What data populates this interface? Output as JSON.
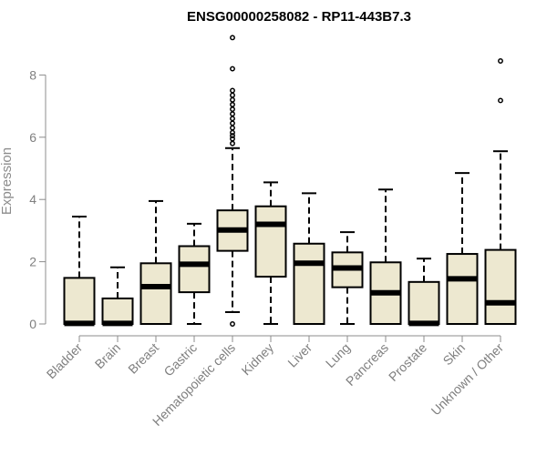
{
  "chart_data": {
    "type": "box",
    "title": "ENSG00000258082 - RP11-443B7.3",
    "ylabel": "Expression",
    "xlabel": "",
    "ylim": [
      0,
      9.25
    ],
    "yticks": [
      0,
      2,
      4,
      6,
      8
    ],
    "ytick_labels": [
      "0",
      "2",
      "4",
      "6",
      "8"
    ],
    "grid": false,
    "legend": "none",
    "colors": {
      "box_fill": "#ede8d0",
      "stroke": "#000000",
      "axis": "#8c8c8c"
    },
    "categories": [
      "Bladder",
      "Brain",
      "Breast",
      "Gastric",
      "Hematopoietic cells",
      "Kidney",
      "Liver",
      "Lung",
      "Pancreas",
      "Prostate",
      "Skin",
      "Unknown / Other"
    ],
    "boxes": [
      {
        "whisker_low": 0,
        "q1": 0,
        "median": 0.02,
        "q3": 1.48,
        "whisker_high": 3.45,
        "outliers": []
      },
      {
        "whisker_low": 0,
        "q1": 0,
        "median": 0.02,
        "q3": 0.82,
        "whisker_high": 1.82,
        "outliers": []
      },
      {
        "whisker_low": 0,
        "q1": 0,
        "median": 1.2,
        "q3": 1.95,
        "whisker_high": 3.95,
        "outliers": []
      },
      {
        "whisker_low": 0,
        "q1": 1.02,
        "median": 1.92,
        "q3": 2.5,
        "whisker_high": 3.22,
        "outliers": []
      },
      {
        "whisker_low": 0.38,
        "q1": 2.35,
        "median": 3.02,
        "q3": 3.65,
        "whisker_high": 5.65,
        "outliers": [
          0,
          5.8,
          5.95,
          6.05,
          6.15,
          6.3,
          6.45,
          6.6,
          6.75,
          6.9,
          7.05,
          7.2,
          7.35,
          7.5,
          8.2,
          9.2
        ]
      },
      {
        "whisker_low": 0,
        "q1": 1.52,
        "median": 3.2,
        "q3": 3.78,
        "whisker_high": 4.55,
        "outliers": []
      },
      {
        "whisker_low": 0,
        "q1": 0,
        "median": 1.95,
        "q3": 2.58,
        "whisker_high": 4.2,
        "outliers": []
      },
      {
        "whisker_low": 0,
        "q1": 1.18,
        "median": 1.8,
        "q3": 2.3,
        "whisker_high": 2.95,
        "outliers": []
      },
      {
        "whisker_low": 0,
        "q1": 0,
        "median": 1.0,
        "q3": 1.98,
        "whisker_high": 4.32,
        "outliers": []
      },
      {
        "whisker_low": 0,
        "q1": 0,
        "median": 0.02,
        "q3": 1.35,
        "whisker_high": 2.1,
        "outliers": []
      },
      {
        "whisker_low": 0,
        "q1": 0,
        "median": 1.45,
        "q3": 2.25,
        "whisker_high": 4.85,
        "outliers": []
      },
      {
        "whisker_low": 0,
        "q1": 0,
        "median": 0.68,
        "q3": 2.38,
        "whisker_high": 5.55,
        "outliers": [
          7.18,
          8.45
        ]
      }
    ]
  }
}
